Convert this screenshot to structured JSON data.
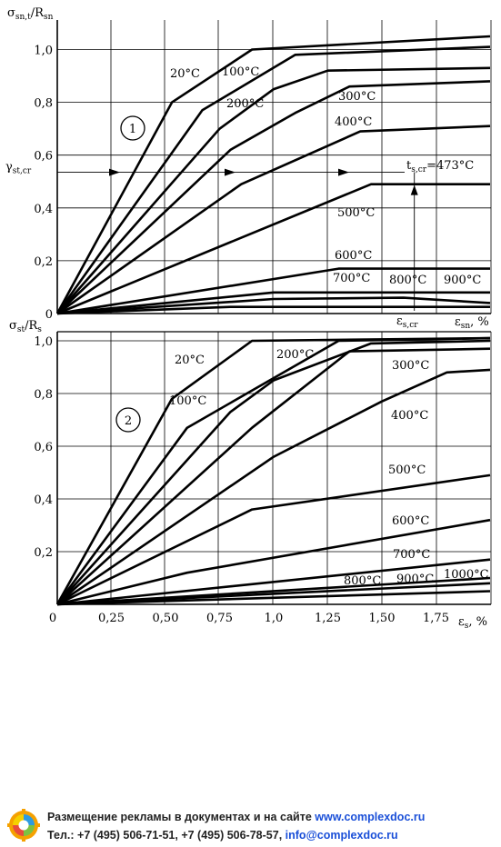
{
  "chart_data": [
    {
      "type": "line",
      "panel_label": "1",
      "ylabel": "σsn,t/Rsn",
      "xlabel": "εsn, %",
      "xlim": [
        0,
        2.0
      ],
      "ylim": [
        0,
        1.08
      ],
      "y_ticks": [
        "0",
        "0,2",
        "0,4",
        "0,6",
        "0,8",
        "1,0"
      ],
      "grid": true,
      "annotations": {
        "gamma_label": "γst,cr",
        "gamma_value": 0.535,
        "ts_label": "ts,cr=473°C",
        "eps_label": "εs,cr",
        "eps_value": 1.65
      },
      "series": [
        {
          "name": "20°C",
          "x": [
            0,
            0.53,
            0.9,
            2.0
          ],
          "y": [
            0,
            0.8,
            1.0,
            1.05
          ]
        },
        {
          "name": "100°C",
          "x": [
            0,
            0.67,
            1.1,
            2.0
          ],
          "y": [
            0,
            0.77,
            0.98,
            1.01
          ]
        },
        {
          "name": "200°C",
          "x": [
            0,
            0.75,
            1.0,
            1.25,
            2.0
          ],
          "y": [
            0,
            0.7,
            0.85,
            0.92,
            0.93
          ]
        },
        {
          "name": "300°C",
          "x": [
            0,
            0.8,
            1.1,
            1.35,
            2.0
          ],
          "y": [
            0,
            0.62,
            0.76,
            0.86,
            0.88
          ]
        },
        {
          "name": "400°C",
          "x": [
            0,
            0.85,
            1.4,
            2.0
          ],
          "y": [
            0,
            0.49,
            0.69,
            0.71
          ]
        },
        {
          "name": "500°C",
          "x": [
            0,
            1.45,
            2.0
          ],
          "y": [
            0,
            0.49,
            0.49
          ]
        },
        {
          "name": "600°C",
          "x": [
            0,
            1.3,
            2.0
          ],
          "y": [
            0,
            0.17,
            0.17
          ]
        },
        {
          "name": "700°C",
          "x": [
            0,
            1.0,
            2.0
          ],
          "y": [
            0,
            0.08,
            0.08
          ]
        },
        {
          "name": "800°C",
          "x": [
            0,
            1.0,
            1.6,
            2.0
          ],
          "y": [
            0,
            0.055,
            0.06,
            0.04
          ]
        },
        {
          "name": "900°C",
          "x": [
            0,
            0.8,
            2.0
          ],
          "y": [
            0,
            0.025,
            0.025
          ]
        }
      ]
    },
    {
      "type": "line",
      "panel_label": "2",
      "ylabel": "σst/Rs",
      "xlabel": "εs, %",
      "xlim": [
        0,
        2.0
      ],
      "ylim": [
        0,
        1.02
      ],
      "x_ticks": [
        "0",
        "0,25",
        "0,50",
        "0,75",
        "1,0",
        "1,25",
        "1,50",
        "1,75"
      ],
      "y_ticks": [
        "0,2",
        "0,4",
        "0,6",
        "0,8",
        "1,0"
      ],
      "grid": true,
      "series": [
        {
          "name": "20°C",
          "x": [
            0,
            0.53,
            0.9,
            2.0
          ],
          "y": [
            0,
            0.78,
            1.0,
            1.01
          ]
        },
        {
          "name": "100°C",
          "x": [
            0,
            0.6,
            1.3,
            2.0
          ],
          "y": [
            0,
            0.67,
            1.0,
            1.01
          ]
        },
        {
          "name": "200°C",
          "x": [
            0,
            0.8,
            1.0,
            1.45,
            2.0
          ],
          "y": [
            0,
            0.73,
            0.85,
            0.99,
            1.0
          ]
        },
        {
          "name": "300°C",
          "x": [
            0,
            0.9,
            1.35,
            2.0
          ],
          "y": [
            0,
            0.67,
            0.96,
            0.97
          ]
        },
        {
          "name": "400°C",
          "x": [
            0,
            1.0,
            1.5,
            1.8,
            2.0
          ],
          "y": [
            0,
            0.56,
            0.77,
            0.88,
            0.89
          ]
        },
        {
          "name": "500°C",
          "x": [
            0,
            0.9,
            2.0
          ],
          "y": [
            0,
            0.36,
            0.49
          ]
        },
        {
          "name": "600°C",
          "x": [
            0,
            0.6,
            2.0
          ],
          "y": [
            0,
            0.12,
            0.32
          ]
        },
        {
          "name": "700°C",
          "x": [
            0,
            2.0
          ],
          "y": [
            0,
            0.17
          ]
        },
        {
          "name": "800°C",
          "x": [
            0,
            2.0
          ],
          "y": [
            0,
            0.1
          ]
        },
        {
          "name": "900°C",
          "x": [
            0,
            2.0
          ],
          "y": [
            0,
            0.08
          ]
        },
        {
          "name": "1000°C",
          "x": [
            0,
            2.0
          ],
          "y": [
            0,
            0.05
          ]
        }
      ]
    }
  ],
  "footer": {
    "line1_text": "Размещение рекламы в документах и на сайте",
    "line1_link": "www.complexdoc.ru",
    "line2_text": "Тел.: +7 (495) 506-71-51, +7 (495) 506-78-57,",
    "line2_link": "info@complexdoc.ru"
  }
}
